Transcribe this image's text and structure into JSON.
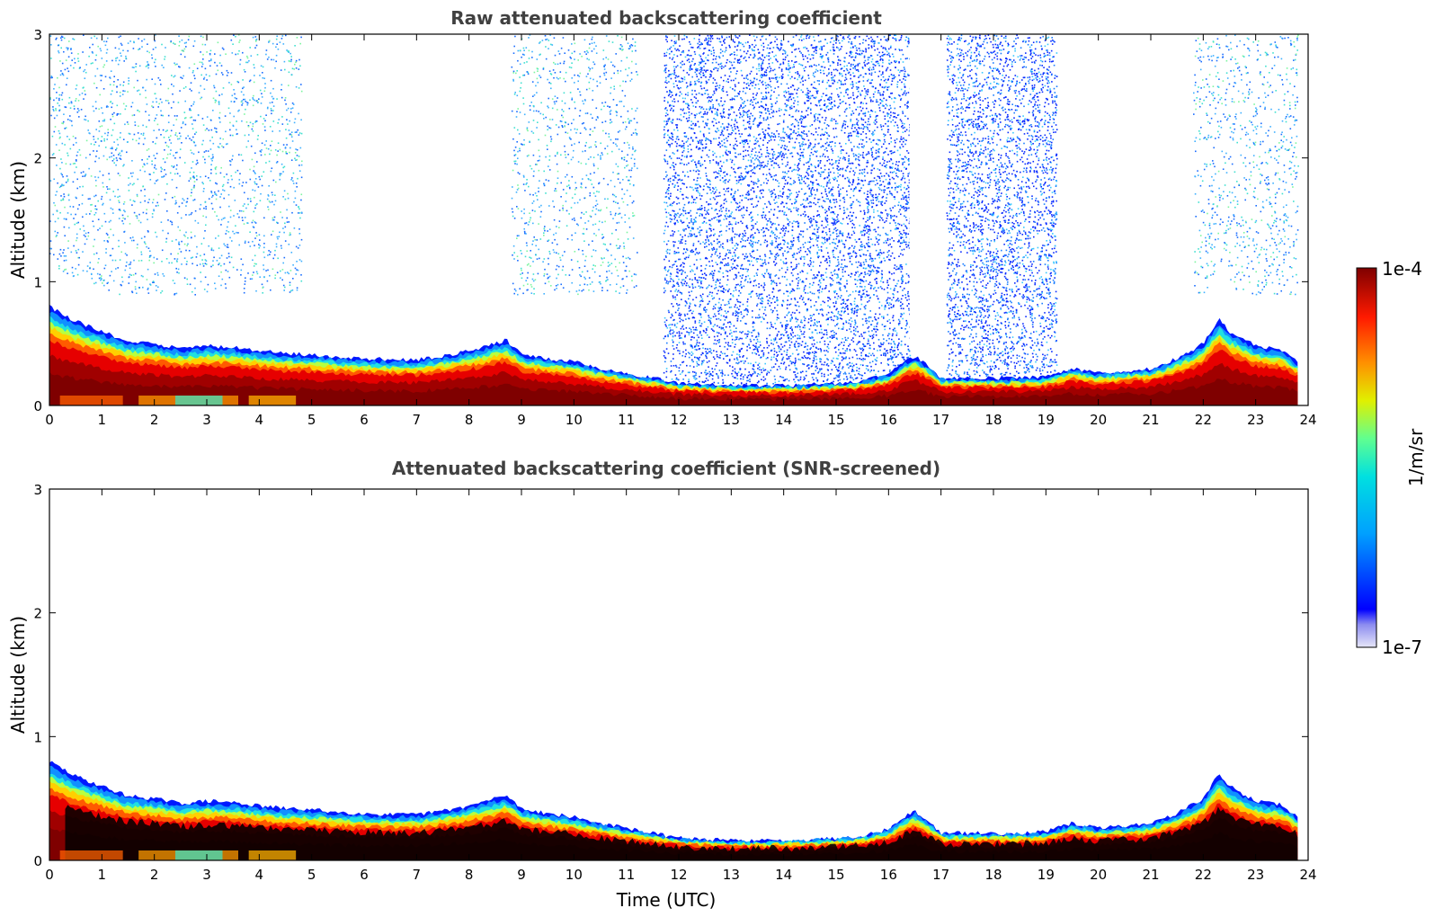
{
  "chart_data": [
    {
      "type": "heatmap",
      "title": "Raw attenuated backscattering coefficient",
      "xlabel": "",
      "ylabel": "Altitude (km)",
      "xlim": [
        0,
        24
      ],
      "ylim": [
        0,
        3
      ],
      "xticks": [
        "0",
        "1",
        "2",
        "3",
        "4",
        "5",
        "6",
        "7",
        "8",
        "9",
        "10",
        "11",
        "12",
        "13",
        "14",
        "15",
        "16",
        "17",
        "18",
        "19",
        "20",
        "21",
        "22",
        "23",
        "24"
      ],
      "yticks": [
        "0",
        "1",
        "2",
        "3"
      ],
      "boundary_layer_top_km": {
        "hours": [
          0,
          0.5,
          1,
          1.5,
          2,
          2.5,
          3,
          3.5,
          4,
          4.5,
          5,
          5.5,
          6,
          6.5,
          7,
          7.5,
          8,
          8.5,
          8.7,
          9,
          9.5,
          10,
          10.5,
          11,
          11.5,
          12,
          12.5,
          13,
          13.5,
          14,
          14.5,
          15,
          15.5,
          16,
          16.3,
          16.5,
          16.8,
          17,
          17.5,
          18,
          18.5,
          19,
          19.5,
          20,
          20.5,
          21,
          21.5,
          22,
          22.3,
          22.5,
          23,
          23.5,
          23.8
        ],
        "values": [
          0.8,
          0.68,
          0.6,
          0.52,
          0.5,
          0.46,
          0.48,
          0.47,
          0.44,
          0.42,
          0.41,
          0.39,
          0.38,
          0.37,
          0.37,
          0.4,
          0.44,
          0.5,
          0.53,
          0.42,
          0.38,
          0.35,
          0.3,
          0.26,
          0.22,
          0.18,
          0.17,
          0.16,
          0.16,
          0.16,
          0.17,
          0.18,
          0.2,
          0.25,
          0.35,
          0.4,
          0.3,
          0.22,
          0.22,
          0.22,
          0.22,
          0.23,
          0.3,
          0.26,
          0.28,
          0.3,
          0.38,
          0.5,
          0.7,
          0.6,
          0.48,
          0.45,
          0.35
        ]
      },
      "noise_upper_regions_hours": [
        [
          0,
          4.8
        ],
        [
          8.8,
          11.2
        ],
        [
          11.7,
          16.4
        ],
        [
          17.1,
          19.2
        ],
        [
          21.8,
          23.8
        ]
      ],
      "dense_noise_regions_hours": [
        [
          11.7,
          16.4
        ],
        [
          17.1,
          19.2
        ]
      ],
      "data_gaps_hours": [
        [
          16.4,
          17.1
        ]
      ]
    },
    {
      "type": "heatmap",
      "title": "Attenuated backscattering coefficient (SNR-screened)",
      "xlabel": "Time (UTC)",
      "ylabel": "Altitude (km)",
      "xlim": [
        0,
        24
      ],
      "ylim": [
        0,
        3
      ],
      "xticks": [
        "0",
        "1",
        "2",
        "3",
        "4",
        "5",
        "6",
        "7",
        "8",
        "9",
        "10",
        "11",
        "12",
        "13",
        "14",
        "15",
        "16",
        "17",
        "18",
        "19",
        "20",
        "21",
        "22",
        "23",
        "24"
      ],
      "yticks": [
        "0",
        "1",
        "2",
        "3"
      ],
      "boundary_layer_top_km": {
        "hours": [
          0,
          0.5,
          1,
          1.5,
          2,
          2.5,
          3,
          3.5,
          4,
          4.5,
          5,
          5.5,
          6,
          6.5,
          7,
          7.5,
          8,
          8.5,
          8.7,
          9,
          9.5,
          10,
          10.5,
          11,
          11.5,
          12,
          12.5,
          13,
          13.5,
          14,
          14.5,
          15,
          15.5,
          16,
          16.3,
          16.5,
          16.8,
          17,
          17.5,
          18,
          18.5,
          19,
          19.5,
          20,
          20.5,
          21,
          21.5,
          22,
          22.3,
          22.5,
          23,
          23.5,
          23.8
        ],
        "values": [
          0.8,
          0.68,
          0.6,
          0.52,
          0.5,
          0.46,
          0.48,
          0.47,
          0.44,
          0.42,
          0.41,
          0.39,
          0.38,
          0.37,
          0.37,
          0.4,
          0.44,
          0.5,
          0.53,
          0.42,
          0.38,
          0.35,
          0.3,
          0.26,
          0.22,
          0.18,
          0.17,
          0.16,
          0.16,
          0.16,
          0.17,
          0.18,
          0.2,
          0.25,
          0.35,
          0.4,
          0.3,
          0.22,
          0.22,
          0.22,
          0.22,
          0.23,
          0.3,
          0.26,
          0.28,
          0.3,
          0.38,
          0.5,
          0.7,
          0.6,
          0.48,
          0.45,
          0.35
        ]
      },
      "saturated_black_core": true
    }
  ],
  "colorbar": {
    "max_label": "1e-4",
    "min_label": "1e-7",
    "unit": "1/m/sr",
    "scale": "log",
    "colormap": "jet"
  }
}
